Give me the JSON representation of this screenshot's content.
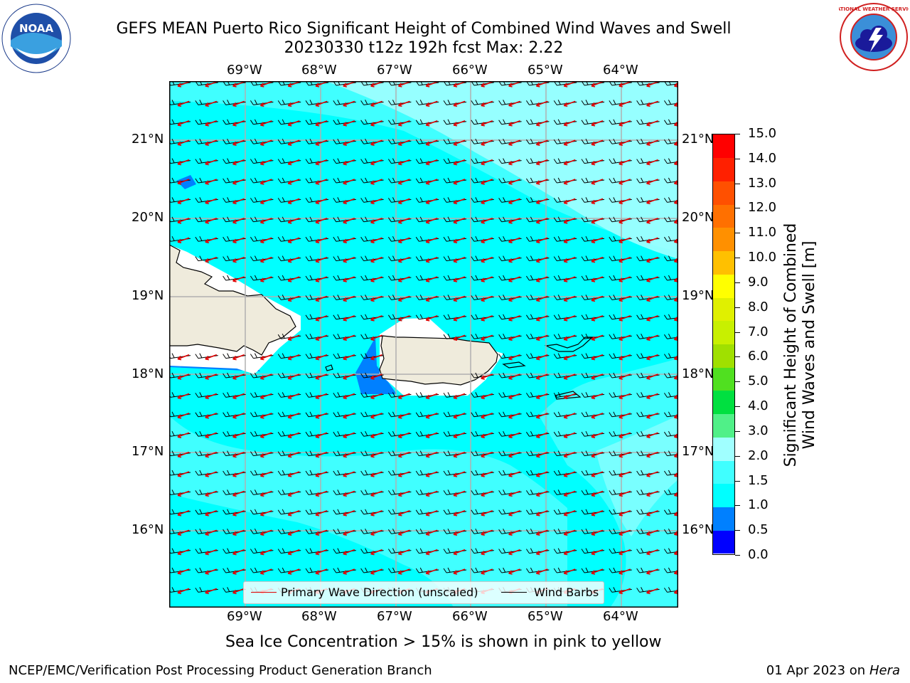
{
  "title": {
    "line1": "GEFS MEAN Puerto Rico Significant Height of Combined Wind Waves and Swell",
    "line2": "20230330 t12z 192h fcst   Max: 2.22"
  },
  "map": {
    "lon_labels": [
      "69°W",
      "68°W",
      "67°W",
      "66°W",
      "65°W",
      "64°W"
    ],
    "lat_labels": [
      "21°N",
      "20°N",
      "19°N",
      "18°N",
      "17°N",
      "16°N"
    ],
    "legend": {
      "primary": "Primary Wave Direction (unscaled)",
      "barbs": "Wind Barbs"
    }
  },
  "colorbar": {
    "label_line1": "Significant Height of Combined",
    "label_line2": "Wind Waves and Swell [m]",
    "ticks": [
      "15.0",
      "14.0",
      "13.0",
      "12.0",
      "11.0",
      "10.0",
      "9.0",
      "8.0",
      "7.0",
      "6.0",
      "5.0",
      "4.0",
      "3.0",
      "2.0",
      "1.5",
      "1.0",
      "0.5",
      "0.0"
    ],
    "colors_bottom_to_top": [
      "#0000ff",
      "#0080ff",
      "#00ffff",
      "#40ffff",
      "#a0ffff",
      "#50f088",
      "#00e040",
      "#50e020",
      "#a0e000",
      "#c8f000",
      "#e0f000",
      "#ffff00",
      "#ffc000",
      "#ff9000",
      "#ff7000",
      "#ff5000",
      "#ff2000",
      "#ff0000"
    ]
  },
  "ice_note": "Sea Ice Concentration > 15% is shown in pink to yellow",
  "footer": {
    "left": "NCEP/EMC/Verification Post Processing Product Generation Branch",
    "right_date": "01 Apr 2023 on ",
    "right_host": "Hera"
  },
  "logos": {
    "noaa": "NOAA",
    "nws": "NATIONAL WEATHER SERVICE"
  }
}
